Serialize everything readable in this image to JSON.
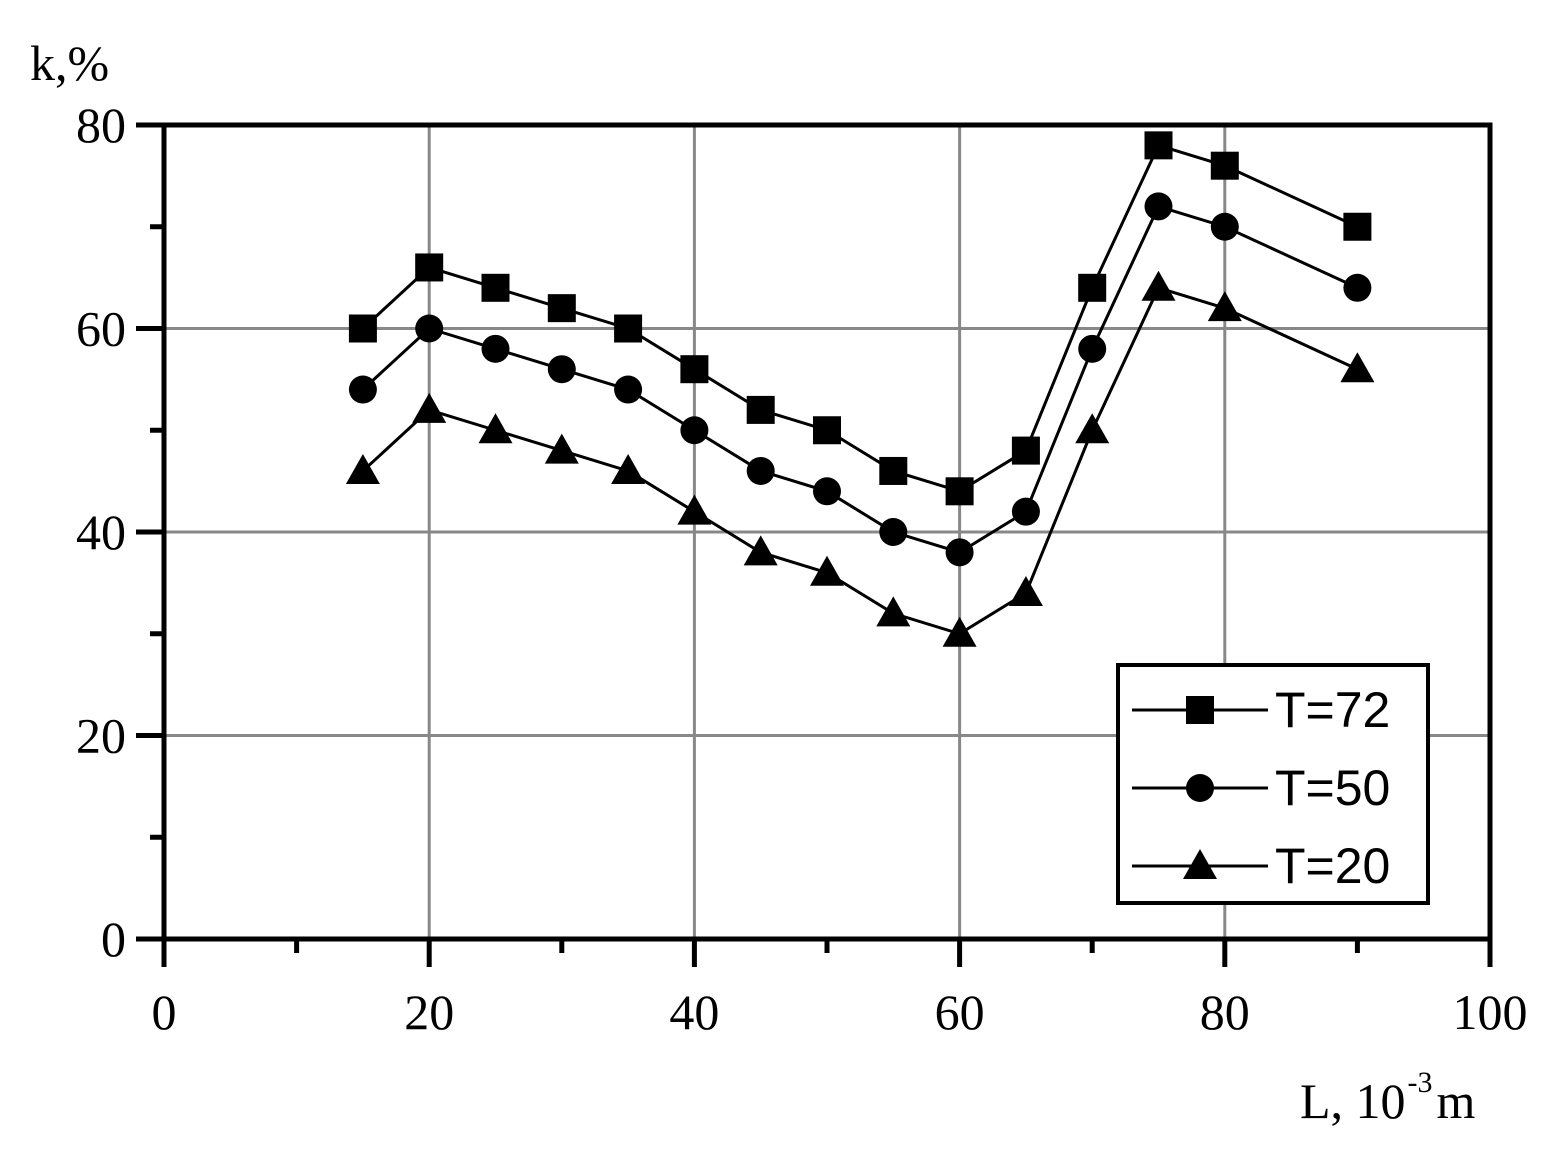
{
  "chart_data": {
    "type": "line",
    "ylabel": "k,%",
    "xlabel": {
      "main": "L, 10",
      "sup": "-3",
      "unit": "m"
    },
    "xlim": [
      0,
      100
    ],
    "ylim": [
      0,
      80
    ],
    "xticks": [
      "0",
      "20",
      "40",
      "60",
      "80",
      "100"
    ],
    "yticks": [
      "0",
      "20",
      "40",
      "60",
      "80"
    ],
    "grid": true,
    "legend_position": "bottom-right",
    "x": [
      15,
      20,
      25,
      30,
      35,
      40,
      45,
      50,
      55,
      60,
      65,
      70,
      75,
      80,
      90
    ],
    "series": [
      {
        "name": "T=72",
        "marker": "square",
        "values": [
          60,
          66,
          64,
          62,
          60,
          56,
          52,
          50,
          46,
          44,
          48,
          64,
          78,
          76,
          70
        ]
      },
      {
        "name": "T=50",
        "marker": "circle",
        "values": [
          54,
          60,
          58,
          56,
          54,
          50,
          46,
          44,
          40,
          38,
          42,
          58,
          72,
          70,
          64
        ]
      },
      {
        "name": "T=20",
        "marker": "triangle",
        "values": [
          46,
          52,
          50,
          48,
          46,
          42,
          38,
          36,
          32,
          30,
          34,
          50,
          64,
          62,
          56
        ]
      }
    ]
  }
}
